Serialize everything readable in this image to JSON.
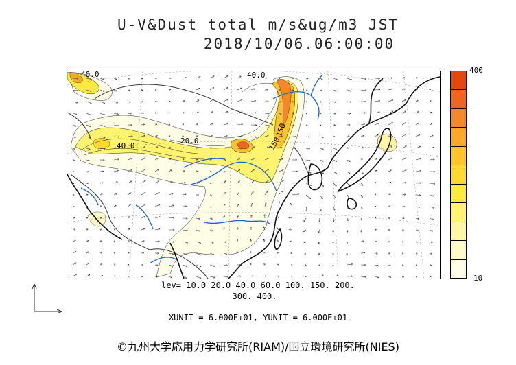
{
  "title": {
    "line1": "U-V&Dust total m/s&ug/m3 JST",
    "line2": "2018/10/06.06:00:00"
  },
  "colorbar": {
    "max_label": "400",
    "min_label": "10",
    "levels": [
      10,
      20,
      40,
      60,
      100,
      150,
      200,
      300,
      400
    ],
    "colors": [
      "#fefde6",
      "#fefbc8",
      "#fff7a6",
      "#fff36f",
      "#ffea3d",
      "#fed930",
      "#fcc42a",
      "#f9a828",
      "#f5882a",
      "#f0651f",
      "#e5480f"
    ]
  },
  "contour_labels": [
    "40.0",
    "40.0",
    "20.0",
    "150",
    "150",
    "40.0"
  ],
  "levels_text": {
    "line1": "lev= 10.0 20.0 40.0 60.0 100. 150. 200.",
    "line2": "300. 400."
  },
  "units_text": "XUNIT = 6.000E+01, YUNIT = 6.000E+01",
  "footer": "©九州大学応用力学研究所(RIAM)/国立環境研究所(NIES)",
  "colors": {
    "coastline": "#111111",
    "rivers": "#1a5fd6",
    "borders": "#333333",
    "grid": "#888888"
  }
}
